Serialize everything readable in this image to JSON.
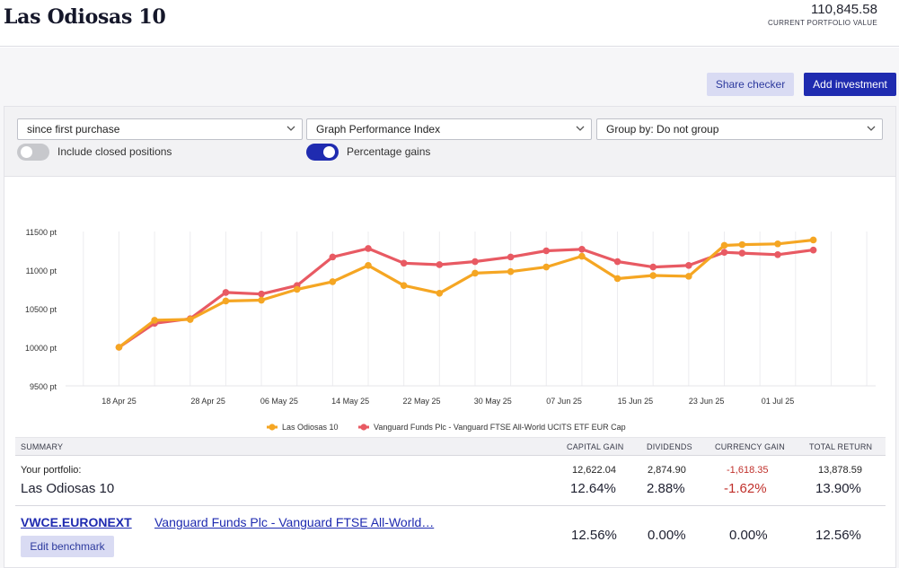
{
  "header": {
    "title": "Las Odiosas 10",
    "portfolio_value": "110,845.58",
    "portfolio_value_label": "CURRENT PORTFOLIO VALUE"
  },
  "actions": {
    "share_label": "Share checker",
    "add_label": "Add investment"
  },
  "controls": {
    "period": "since first purchase",
    "graph": "Graph Performance Index",
    "group": "Group by: Do not group",
    "closed_label": "Include closed positions",
    "closed_on": false,
    "pct_label": "Percentage gains",
    "pct_on": true
  },
  "chart_data": {
    "type": "line",
    "y_unit": "pt",
    "ylim": [
      9500,
      11500
    ],
    "yticks": [
      9500,
      10000,
      10500,
      11000,
      11500
    ],
    "ytick_labels": [
      "9500 pt",
      "10000 pt",
      "10500 pt",
      "11000 pt",
      "11500 pt"
    ],
    "xticks": [
      {
        "date": "2025-04-18",
        "label": "18 Apr 25"
      },
      {
        "date": "2025-04-28",
        "label": "28 Apr 25"
      },
      {
        "date": "2025-05-06",
        "label": "06 May 25"
      },
      {
        "date": "2025-05-14",
        "label": "14 May 25"
      },
      {
        "date": "2025-05-22",
        "label": "22 May 25"
      },
      {
        "date": "2025-05-30",
        "label": "30 May 25"
      },
      {
        "date": "2025-06-07",
        "label": "07 Jun 25"
      },
      {
        "date": "2025-06-15",
        "label": "15 Jun 25"
      },
      {
        "date": "2025-06-23",
        "label": "23 Jun 25"
      },
      {
        "date": "2025-07-01",
        "label": "01 Jul 25"
      }
    ],
    "x": [
      "2025-04-18",
      "2025-04-22",
      "2025-04-26",
      "2025-04-30",
      "2025-05-04",
      "2025-05-08",
      "2025-05-12",
      "2025-05-16",
      "2025-05-20",
      "2025-05-24",
      "2025-05-28",
      "2025-06-01",
      "2025-06-05",
      "2025-06-09",
      "2025-06-13",
      "2025-06-17",
      "2025-06-21",
      "2025-06-25",
      "2025-06-27",
      "2025-07-01",
      "2025-07-05"
    ],
    "series": [
      {
        "name": "Las Odiosas 10",
        "color": "#f5a623",
        "values": [
          10000,
          10350,
          10360,
          10600,
          10610,
          10750,
          10850,
          11060,
          10800,
          10700,
          10960,
          10980,
          11040,
          11180,
          10890,
          10930,
          10920,
          11320,
          11330,
          11340,
          11390
        ]
      },
      {
        "name": "Vanguard Funds Plc - Vanguard FTSE All-World UCITS ETF EUR Cap",
        "color": "#e85a63",
        "values": [
          10000,
          10310,
          10370,
          10710,
          10690,
          10800,
          11170,
          11280,
          11090,
          11070,
          11110,
          11170,
          11250,
          11270,
          11110,
          11040,
          11060,
          11230,
          11220,
          11200,
          11260
        ]
      }
    ],
    "legend_position": "bottom",
    "grid": "vertical"
  },
  "summary": {
    "headers": {
      "summary": "SUMMARY",
      "capital_gain": "CAPITAL GAIN",
      "dividends": "DIVIDENDS",
      "currency_gain": "CURRENCY GAIN",
      "total_return": "TOTAL RETURN"
    },
    "portfolio": {
      "label": "Your portfolio:",
      "name": "Las Odiosas 10",
      "capital_gain_abs": "12,622.04",
      "capital_gain_pct": "12.64%",
      "dividends_abs": "2,874.90",
      "dividends_pct": "2.88%",
      "currency_gain_abs": "-1,618.35",
      "currency_gain_pct": "-1.62%",
      "total_return_abs": "13,878.59",
      "total_return_pct": "13.90%"
    },
    "benchmark": {
      "ticker": "VWCE.EURONEXT",
      "name": "Vanguard Funds Plc - Vanguard FTSE All-World…",
      "edit_label": "Edit benchmark",
      "capital_gain_pct": "12.56%",
      "dividends_pct": "0.00%",
      "currency_gain_pct": "0.00%",
      "total_return_pct": "12.56%"
    }
  }
}
